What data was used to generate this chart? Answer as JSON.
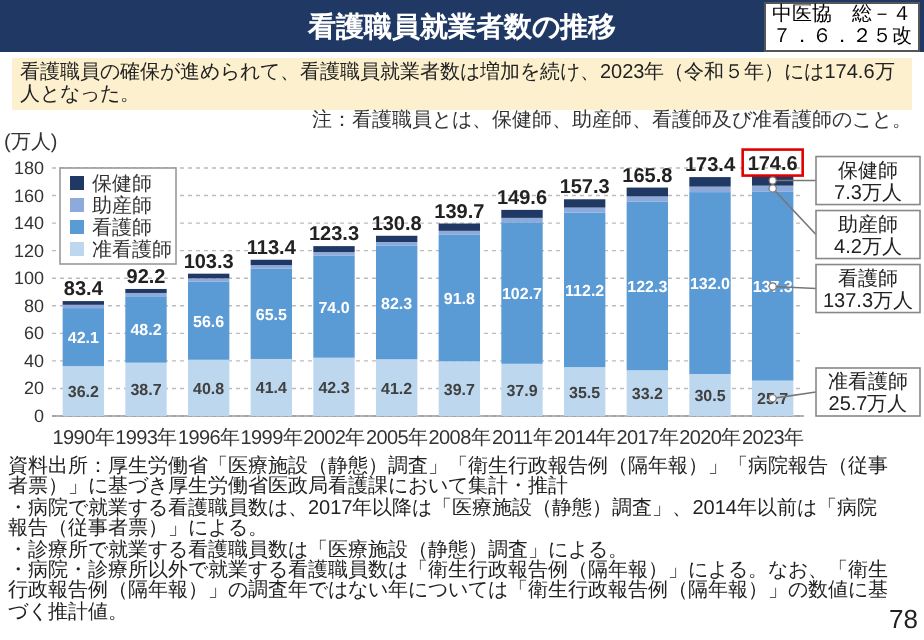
{
  "chart_data": {
    "type": "bar",
    "title": "看護職員就業者数の推移",
    "subtitle": "看護職員の確保が進められて、看護職員就業者数は増加を続け、2023年（令和５年）には174.6万人となった。",
    "ylabel": "(万人)",
    "categories": [
      "1990年",
      "1993年",
      "1996年",
      "1999年",
      "2002年",
      "2005年",
      "2008年",
      "2011年",
      "2014年",
      "2017年",
      "2020年",
      "2023年"
    ],
    "stacked": true,
    "series": [
      {
        "name": "准看護師",
        "color": "#bdd7ee",
        "values": [
          36.2,
          38.7,
          40.8,
          41.4,
          42.3,
          41.2,
          39.7,
          37.9,
          35.5,
          33.2,
          30.5,
          25.7
        ],
        "value_labels": [
          "36.2",
          "38.7",
          "40.8",
          "41.4",
          "42.3",
          "41.2",
          "39.7",
          "37.9",
          "35.5",
          "33.2",
          "30.5",
          "25.7"
        ]
      },
      {
        "name": "看護師",
        "color": "#5b9bd5",
        "values": [
          42.1,
          48.2,
          56.6,
          65.5,
          74.0,
          82.3,
          91.8,
          102.7,
          112.2,
          122.3,
          132.0,
          137.3
        ],
        "value_labels": [
          "42.1",
          "48.2",
          "56.6",
          "65.5",
          "74.0",
          "82.3",
          "91.8",
          "102.7",
          "112.2",
          "122.3",
          "132.0",
          "137.3"
        ]
      },
      {
        "name": "助産師",
        "color": "#8eaadb",
        "values": [
          2.4,
          2.4,
          2.5,
          2.6,
          2.7,
          2.8,
          2.9,
          3.2,
          3.6,
          3.9,
          4.0,
          4.2
        ]
      },
      {
        "name": "保健師",
        "color": "#1f3864",
        "values": [
          2.7,
          2.9,
          3.4,
          3.9,
          4.3,
          4.5,
          5.3,
          5.8,
          6.0,
          6.4,
          6.9,
          7.3
        ]
      }
    ],
    "totals": [
      "83.4",
      "92.2",
      "103.3",
      "113.4",
      "123.3",
      "130.8",
      "139.7",
      "149.6",
      "157.3",
      "165.8",
      "173.4",
      "174.6"
    ],
    "ylim": [
      0,
      180
    ],
    "yticks": [
      0,
      20,
      40,
      60,
      80,
      100,
      120,
      140,
      160,
      180
    ],
    "grid": "y",
    "legend": "top left",
    "annotations": [
      "中医協　総－４",
      "７．６．２５改",
      "注：看護職員とは、保健師、助産師、看護師及び准看護師のこと。",
      "資料出所：厚生労働省「医療施設（静態）調査」「衛生行政報告例（隔年報）」「病院報告（従事者票）」に基づき厚生労働省医政局看護課において集計・推計",
      "・病院で就業する看護職員数は、2017年以降は「医療施設（静態）調査」、2014年以前は「病院報告（従事者票）」による。",
      "・診療所で就業する看護職員数は「医療施設（静態）調査」による。",
      "・病院・診療所以外で就業する看護職員数は「衛生行政報告例（隔年報）」による。なお、「衛生行政報告例（隔年報）」の調査年ではない年については「衛生行政報告例（隔年報）」の数値に基づく推計値。",
      "78",
      {
        "text": "保健師 7.3万人",
        "x": "2023年",
        "y": 170.9
      },
      {
        "text": "助産師 4.2万人",
        "x": "2023年",
        "y": 165.2
      },
      {
        "text": "看護師 137.3万人",
        "x": "2023年",
        "y": 94
      },
      {
        "text": "准看護師 25.7万人",
        "x": "2023年",
        "y": 12.8
      }
    ]
  }
}
